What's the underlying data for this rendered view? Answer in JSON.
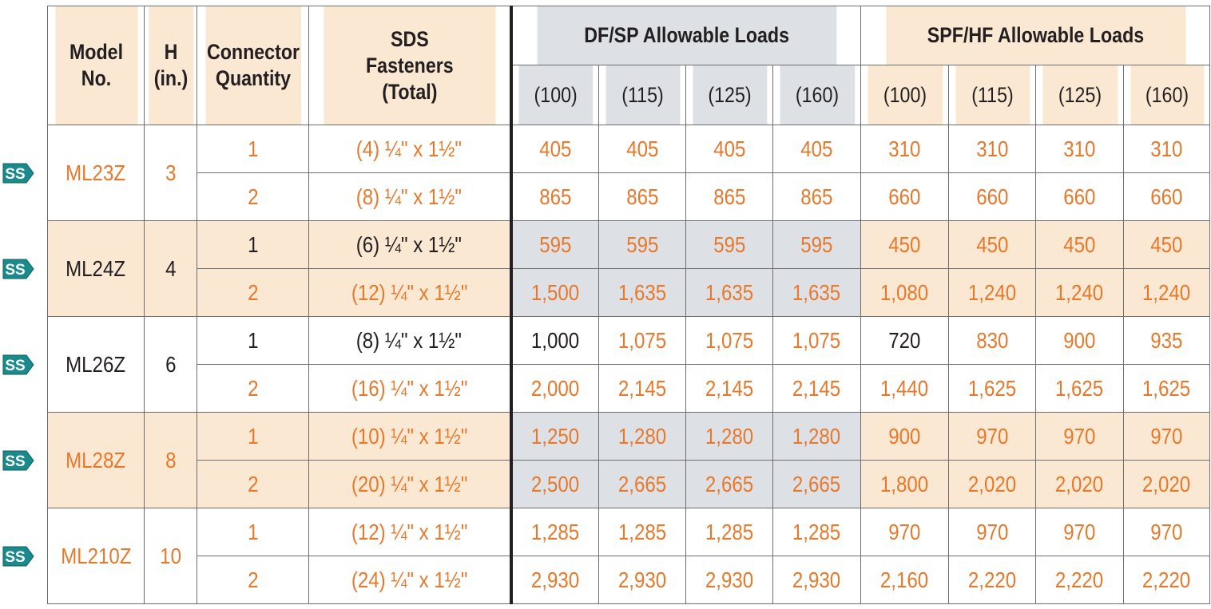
{
  "headers": {
    "model": "Model No.",
    "model_lines": [
      "Model",
      "No."
    ],
    "h_lines": [
      "H",
      "(in.)"
    ],
    "connector_lines": [
      "Connector",
      "Quantity"
    ],
    "sds_lines": [
      "SDS",
      "Fasteners",
      "(Total)"
    ],
    "dfsp": "DF/SP Allowable Loads",
    "spfhf": "SPF/HF Allowable Loads",
    "load_durations": [
      "(100)",
      "(115)",
      "(125)",
      "(160)",
      "(100)",
      "(115)",
      "(125)",
      "(160)"
    ]
  },
  "badge_label": "SS",
  "colors": {
    "orange_text": "#e8782a",
    "tan": "#fbe8d3",
    "blue_gray": "#dde1e6",
    "badge": "#1a8a8c"
  },
  "models": [
    {
      "model": "ML23Z",
      "h": "3",
      "shade": "white",
      "rows": [
        {
          "qty": "1",
          "fasteners": "(4) ¼\" x 1½\"",
          "df": [
            "405",
            "405",
            "405",
            "405"
          ],
          "spf": [
            "310",
            "310",
            "310",
            "310"
          ]
        },
        {
          "qty": "2",
          "fasteners": "(8) ¼\" x 1½\"",
          "df": [
            "865",
            "865",
            "865",
            "865"
          ],
          "spf": [
            "660",
            "660",
            "660",
            "660"
          ]
        }
      ]
    },
    {
      "model": "ML24Z",
      "h": "4",
      "shade": "tan",
      "rows": [
        {
          "qty": "1",
          "fasteners": "(6) ¼\" x 1½\"",
          "df": [
            "595",
            "595",
            "595",
            "595"
          ],
          "spf": [
            "450",
            "450",
            "450",
            "450"
          ]
        },
        {
          "qty": "2",
          "fasteners": "(12) ¼\" x 1½\"",
          "df": [
            "1,500",
            "1,635",
            "1,635",
            "1,635"
          ],
          "spf": [
            "1,080",
            "1,240",
            "1,240",
            "1,240"
          ]
        }
      ]
    },
    {
      "model": "ML26Z",
      "h": "6",
      "shade": "white",
      "rows": [
        {
          "qty": "1",
          "fasteners": "(8) ¼\" x 1½\"",
          "df": [
            "1,000",
            "1,075",
            "1,075",
            "1,075"
          ],
          "spf": [
            "720",
            "830",
            "900",
            "935"
          ]
        },
        {
          "qty": "2",
          "fasteners": "(16) ¼\" x 1½\"",
          "df": [
            "2,000",
            "2,145",
            "2,145",
            "2,145"
          ],
          "spf": [
            "1,440",
            "1,625",
            "1,625",
            "1,625"
          ]
        }
      ]
    },
    {
      "model": "ML28Z",
      "h": "8",
      "shade": "tan",
      "rows": [
        {
          "qty": "1",
          "fasteners": "(10) ¼\" x 1½\"",
          "df": [
            "1,250",
            "1,280",
            "1,280",
            "1,280"
          ],
          "spf": [
            "900",
            "970",
            "970",
            "970"
          ]
        },
        {
          "qty": "2",
          "fasteners": "(20) ¼\" x 1½\"",
          "df": [
            "2,500",
            "2,665",
            "2,665",
            "2,665"
          ],
          "spf": [
            "1,800",
            "2,020",
            "2,020",
            "2,020"
          ]
        }
      ]
    },
    {
      "model": "ML210Z",
      "h": "10",
      "shade": "white",
      "rows": [
        {
          "qty": "1",
          "fasteners": "(12) ¼\" x 1½\"",
          "df": [
            "1,285",
            "1,285",
            "1,285",
            "1,285"
          ],
          "spf": [
            "970",
            "970",
            "970",
            "970"
          ]
        },
        {
          "qty": "2",
          "fasteners": "(24) ¼\" x 1½\"",
          "df": [
            "2,930",
            "2,930",
            "2,930",
            "2,930"
          ],
          "spf": [
            "2,160",
            "2,220",
            "2,220",
            "2,220"
          ]
        }
      ]
    }
  ]
}
